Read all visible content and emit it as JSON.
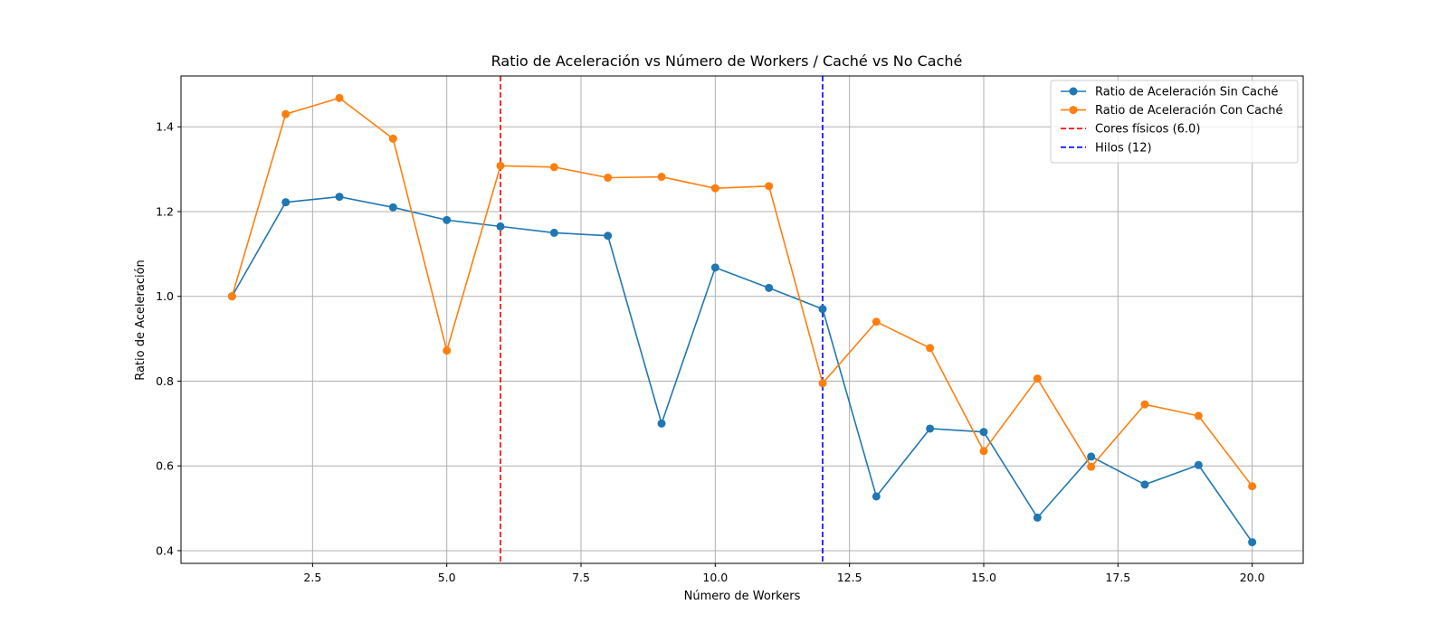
{
  "chart_data": {
    "type": "line",
    "title": "Ratio de Aceleración vs Número de Workers / Caché vs No Caché",
    "xlabel": "Número de Workers",
    "ylabel": "Ratio de Aceleración",
    "xlim": [
      0.05,
      20.95
    ],
    "ylim": [
      0.37,
      1.52
    ],
    "x_ticks": [
      2.5,
      5.0,
      7.5,
      10.0,
      12.5,
      15.0,
      17.5,
      20.0
    ],
    "x_tick_labels": [
      "2.5",
      "5.0",
      "7.5",
      "10.0",
      "12.5",
      "15.0",
      "17.5",
      "20.0"
    ],
    "y_ticks": [
      0.4,
      0.6,
      0.8,
      1.0,
      1.2,
      1.4
    ],
    "y_tick_labels": [
      "0.4",
      "0.6",
      "0.8",
      "1.0",
      "1.2",
      "1.4"
    ],
    "grid": true,
    "legend_position": "top-right",
    "x": [
      1,
      2,
      3,
      4,
      5,
      6,
      7,
      8,
      9,
      10,
      11,
      12,
      13,
      14,
      15,
      16,
      17,
      18,
      19,
      20
    ],
    "series": [
      {
        "name": "Ratio de Aceleración Sin Caché",
        "color": "#1f77b4",
        "values": [
          1.0,
          1.222,
          1.235,
          1.21,
          1.18,
          1.165,
          1.15,
          1.143,
          0.7,
          1.068,
          1.02,
          0.97,
          0.528,
          0.688,
          0.68,
          0.478,
          0.622,
          0.556,
          0.602,
          0.42
        ]
      },
      {
        "name": "Ratio de Aceleración Con Caché",
        "color": "#ff7f0e",
        "values": [
          1.0,
          1.43,
          1.468,
          1.372,
          0.872,
          1.308,
          1.305,
          1.28,
          1.282,
          1.255,
          1.26,
          0.795,
          0.94,
          0.878,
          0.635,
          0.806,
          0.598,
          0.745,
          0.718,
          0.552
        ]
      }
    ],
    "reference_lines": [
      {
        "name": "Cores físicos (6.0)",
        "x": 6.0,
        "color": "#ff0000",
        "style": "dashed"
      },
      {
        "name": "Hilos (12)",
        "x": 12,
        "color": "#0000ff",
        "style": "dashed"
      }
    ]
  }
}
